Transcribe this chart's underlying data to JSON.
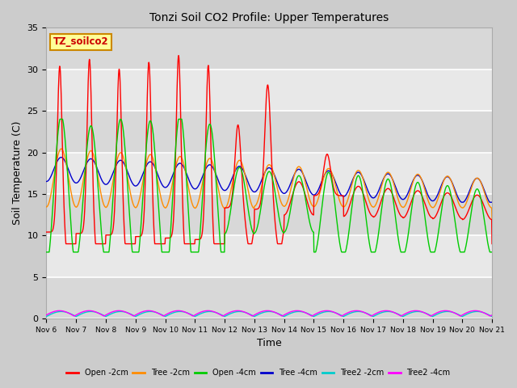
{
  "title": "Tonzi Soil CO2 Profile: Upper Temperatures",
  "xlabel": "Time",
  "ylabel": "Soil Temperature (C)",
  "ylim": [
    0,
    35
  ],
  "xlim": [
    0,
    15
  ],
  "fig_bg_color": "#cccccc",
  "plot_bg_color": "#e8e8e8",
  "grid_color": "white",
  "label_box_text": "TZ_soilco2",
  "label_box_color": "#ffff99",
  "label_box_edge": "#cc8800",
  "label_box_text_color": "#cc0000",
  "xtick_labels": [
    "Nov 6",
    "Nov 7",
    "Nov 8",
    "Nov 9",
    "Nov 10",
    "Nov 11",
    "Nov 12",
    "Nov 13",
    "Nov 14",
    "Nov 15",
    "Nov 16",
    "Nov 17",
    "Nov 18",
    "Nov 19",
    "Nov 20",
    "Nov 21"
  ],
  "ytick_vals": [
    0,
    5,
    10,
    15,
    20,
    25,
    30,
    35
  ],
  "series": [
    {
      "name": "Open -2cm",
      "color": "#ff0000"
    },
    {
      "name": "Tree -2cm",
      "color": "#ff8c00"
    },
    {
      "name": "Open -4cm",
      "color": "#00cc00"
    },
    {
      "name": "Tree -4cm",
      "color": "#0000cc"
    },
    {
      "name": "Tree2 -2cm",
      "color": "#00cccc"
    },
    {
      "name": "Tree2 -4cm",
      "color": "#ff00ff"
    }
  ]
}
